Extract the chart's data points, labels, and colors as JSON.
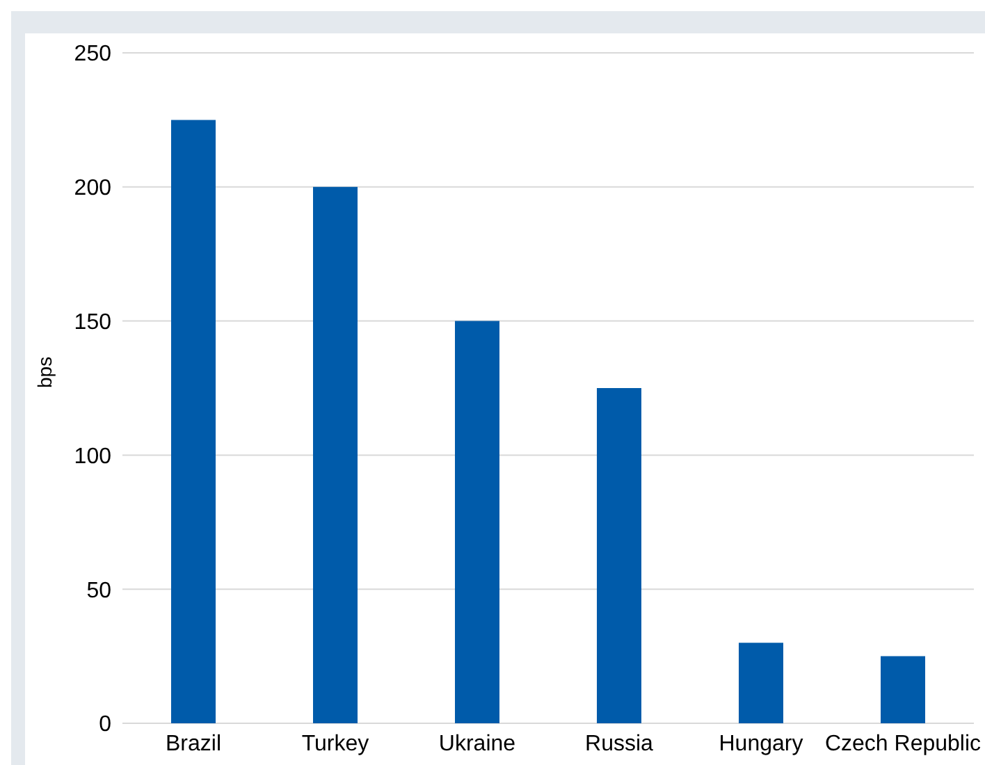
{
  "chart_data": {
    "type": "bar",
    "ylabel": "bps",
    "categories": [
      "Brazil",
      "Turkey",
      "Ukraine",
      "Russia",
      "Hungary",
      "Czech Republic"
    ],
    "series": [
      {
        "color": "#005baa",
        "values": [
          225,
          200,
          150,
          125,
          30,
          25
        ]
      }
    ],
    "ylim": [
      0,
      250
    ],
    "yticks": [
      0,
      50,
      100,
      150,
      200,
      250
    ],
    "grid": "y",
    "legend": false
  }
}
